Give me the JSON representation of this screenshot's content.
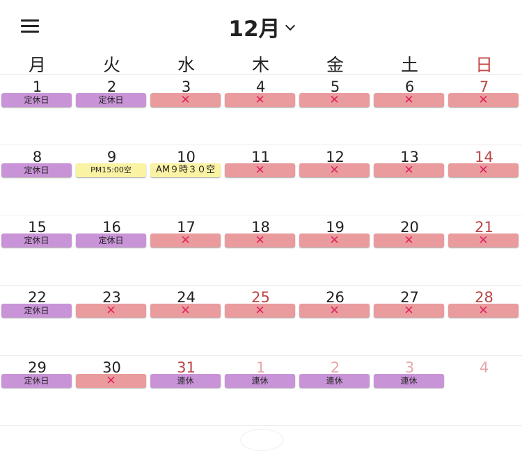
{
  "header": {
    "month_label": "12月"
  },
  "weekdays": [
    "月",
    "火",
    "水",
    "木",
    "金",
    "土",
    "日"
  ],
  "weeks": [
    [
      {
        "num": "1",
        "badge": "定休日",
        "type": "closed"
      },
      {
        "num": "2",
        "badge": "定休日",
        "type": "closed"
      },
      {
        "num": "3",
        "badge": "✕",
        "type": "full"
      },
      {
        "num": "4",
        "badge": "✕",
        "type": "full"
      },
      {
        "num": "5",
        "badge": "✕",
        "type": "full"
      },
      {
        "num": "6",
        "badge": "✕",
        "type": "full"
      },
      {
        "num": "7",
        "badge": "✕",
        "type": "full",
        "num_style": "holiday"
      }
    ],
    [
      {
        "num": "8",
        "badge": "定休日",
        "type": "closed"
      },
      {
        "num": "9",
        "badge": "PM15:00空",
        "type": "avail",
        "size": "small"
      },
      {
        "num": "10",
        "badge": "AM９時３０空",
        "type": "avail",
        "size": "large"
      },
      {
        "num": "11",
        "badge": "✕",
        "type": "full"
      },
      {
        "num": "12",
        "badge": "✕",
        "type": "full"
      },
      {
        "num": "13",
        "badge": "✕",
        "type": "full"
      },
      {
        "num": "14",
        "badge": "✕",
        "type": "full",
        "num_style": "holiday"
      }
    ],
    [
      {
        "num": "15",
        "badge": "定休日",
        "type": "closed"
      },
      {
        "num": "16",
        "badge": "定休日",
        "type": "closed"
      },
      {
        "num": "17",
        "badge": "✕",
        "type": "full"
      },
      {
        "num": "18",
        "badge": "✕",
        "type": "full"
      },
      {
        "num": "19",
        "badge": "✕",
        "type": "full"
      },
      {
        "num": "20",
        "badge": "✕",
        "type": "full"
      },
      {
        "num": "21",
        "badge": "✕",
        "type": "full",
        "num_style": "holiday"
      }
    ],
    [
      {
        "num": "22",
        "badge": "定休日",
        "type": "closed"
      },
      {
        "num": "23",
        "badge": "✕",
        "type": "full"
      },
      {
        "num": "24",
        "badge": "✕",
        "type": "full"
      },
      {
        "num": "25",
        "badge": "✕",
        "type": "full",
        "num_style": "holiday"
      },
      {
        "num": "26",
        "badge": "✕",
        "type": "full"
      },
      {
        "num": "27",
        "badge": "✕",
        "type": "full"
      },
      {
        "num": "28",
        "badge": "✕",
        "type": "full",
        "num_style": "holiday"
      }
    ],
    [
      {
        "num": "29",
        "badge": "定休日",
        "type": "closed"
      },
      {
        "num": "30",
        "badge": "✕",
        "type": "full"
      },
      {
        "num": "31",
        "badge": "連休",
        "type": "closed",
        "num_style": "holiday"
      },
      {
        "num": "1",
        "badge": "連休",
        "type": "closed",
        "num_style": "faded-holiday"
      },
      {
        "num": "2",
        "badge": "連休",
        "type": "closed",
        "num_style": "faded-holiday"
      },
      {
        "num": "3",
        "badge": "連休",
        "type": "closed",
        "num_style": "faded-holiday"
      },
      {
        "num": "4",
        "badge": "",
        "type": "none",
        "num_style": "faded-holiday"
      }
    ]
  ],
  "colors": {
    "closed": "#c993d8",
    "full": "#e99b9d",
    "full_mark": "#e0245e",
    "available": "#fbf3a4",
    "holiday_text": "#b84545"
  },
  "icons": {
    "menu": "hamburger-menu-icon",
    "month_dropdown": "chevron-down-icon",
    "full": "cross-icon"
  }
}
